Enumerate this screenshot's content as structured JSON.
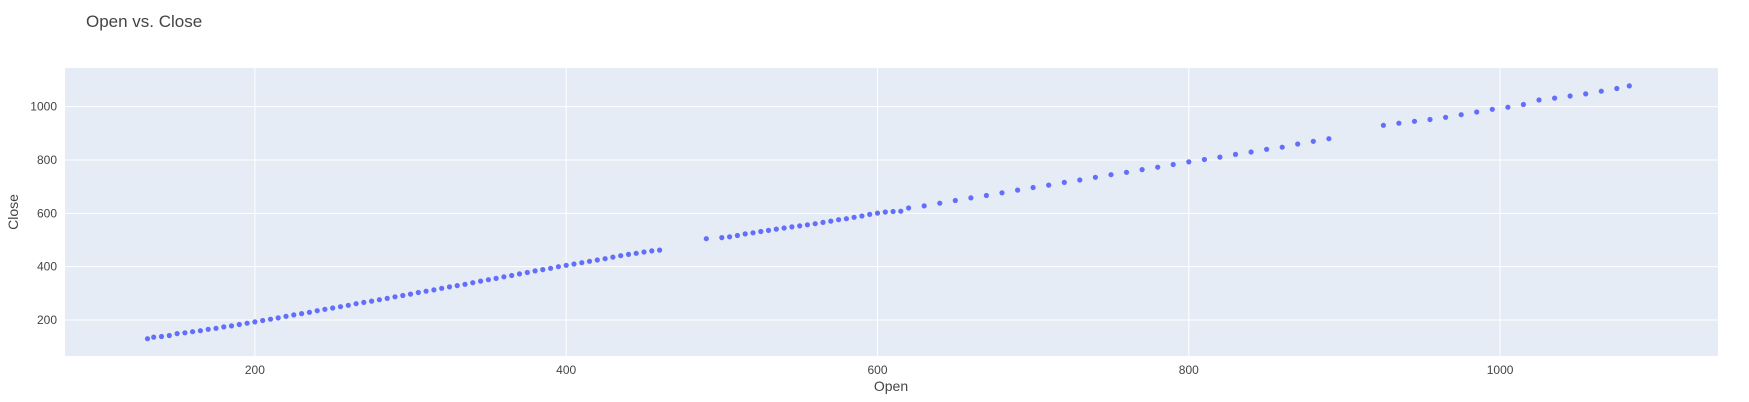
{
  "chart_data": {
    "type": "scatter",
    "title": "Open vs. Close",
    "xlabel": "Open",
    "ylabel": "Close",
    "xlim": [
      78,
      1140
    ],
    "ylim": [
      65,
      1145
    ],
    "x_ticks": [
      200,
      400,
      600,
      800,
      1000
    ],
    "y_ticks": [
      200,
      400,
      600,
      800,
      1000
    ],
    "grid": true,
    "legend": "none",
    "colors": {
      "marker": "#636efa",
      "plot_bg": "#e5ecf6",
      "grid": "#ffffff",
      "text": "#444444"
    },
    "series": [
      {
        "points": [
          [
            131,
            130
          ],
          [
            135,
            136
          ],
          [
            140,
            138
          ],
          [
            145,
            142
          ],
          [
            150,
            149
          ],
          [
            155,
            152
          ],
          [
            160,
            156
          ],
          [
            165,
            160
          ],
          [
            170,
            165
          ],
          [
            175,
            169
          ],
          [
            180,
            174
          ],
          [
            185,
            178
          ],
          [
            190,
            183
          ],
          [
            195,
            188
          ],
          [
            200,
            193
          ],
          [
            205,
            198
          ],
          [
            210,
            203
          ],
          [
            215,
            208
          ],
          [
            220,
            214
          ],
          [
            225,
            219
          ],
          [
            230,
            224
          ],
          [
            235,
            229
          ],
          [
            240,
            235
          ],
          [
            245,
            240
          ],
          [
            250,
            245
          ],
          [
            255,
            250
          ],
          [
            260,
            255
          ],
          [
            265,
            261
          ],
          [
            270,
            266
          ],
          [
            275,
            271
          ],
          [
            280,
            276
          ],
          [
            285,
            281
          ],
          [
            290,
            287
          ],
          [
            295,
            292
          ],
          [
            300,
            297
          ],
          [
            305,
            303
          ],
          [
            310,
            308
          ],
          [
            315,
            313
          ],
          [
            320,
            319
          ],
          [
            325,
            324
          ],
          [
            330,
            329
          ],
          [
            335,
            334
          ],
          [
            340,
            340
          ],
          [
            345,
            346
          ],
          [
            350,
            351
          ],
          [
            355,
            356
          ],
          [
            360,
            362
          ],
          [
            365,
            367
          ],
          [
            370,
            373
          ],
          [
            375,
            378
          ],
          [
            380,
            384
          ],
          [
            385,
            389
          ],
          [
            390,
            394
          ],
          [
            395,
            400
          ],
          [
            400,
            405
          ],
          [
            405,
            410
          ],
          [
            410,
            415
          ],
          [
            415,
            420
          ],
          [
            420,
            425
          ],
          [
            425,
            430
          ],
          [
            430,
            436
          ],
          [
            435,
            441
          ],
          [
            440,
            446
          ],
          [
            445,
            450
          ],
          [
            450,
            455
          ],
          [
            455,
            459
          ],
          [
            460,
            462
          ],
          [
            490,
            505
          ],
          [
            500,
            509
          ],
          [
            505,
            512
          ],
          [
            510,
            517
          ],
          [
            515,
            523
          ],
          [
            520,
            527
          ],
          [
            525,
            532
          ],
          [
            530,
            536
          ],
          [
            535,
            541
          ],
          [
            540,
            545
          ],
          [
            545,
            549
          ],
          [
            550,
            553
          ],
          [
            555,
            557
          ],
          [
            560,
            561
          ],
          [
            565,
            566
          ],
          [
            570,
            571
          ],
          [
            575,
            576
          ],
          [
            580,
            580
          ],
          [
            585,
            585
          ],
          [
            590,
            590
          ],
          [
            595,
            596
          ],
          [
            600,
            601
          ],
          [
            605,
            605
          ],
          [
            610,
            607
          ],
          [
            615,
            608
          ],
          [
            620,
            620
          ],
          [
            630,
            628
          ],
          [
            640,
            638
          ],
          [
            650,
            648
          ],
          [
            660,
            658
          ],
          [
            670,
            667
          ],
          [
            680,
            677
          ],
          [
            690,
            687
          ],
          [
            700,
            697
          ],
          [
            710,
            706
          ],
          [
            720,
            716
          ],
          [
            730,
            725
          ],
          [
            740,
            735
          ],
          [
            750,
            745
          ],
          [
            760,
            754
          ],
          [
            770,
            764
          ],
          [
            780,
            773
          ],
          [
            790,
            783
          ],
          [
            800,
            793
          ],
          [
            810,
            802
          ],
          [
            820,
            811
          ],
          [
            830,
            821
          ],
          [
            840,
            830
          ],
          [
            850,
            840
          ],
          [
            860,
            848
          ],
          [
            870,
            860
          ],
          [
            880,
            870
          ],
          [
            890,
            880
          ],
          [
            925,
            930
          ],
          [
            935,
            938
          ],
          [
            945,
            945
          ],
          [
            955,
            952
          ],
          [
            965,
            960
          ],
          [
            975,
            970
          ],
          [
            985,
            980
          ],
          [
            995,
            990
          ],
          [
            1005,
            998
          ],
          [
            1015,
            1008
          ],
          [
            1025,
            1025
          ],
          [
            1035,
            1032
          ],
          [
            1045,
            1040
          ],
          [
            1055,
            1048
          ],
          [
            1065,
            1058
          ],
          [
            1075,
            1068
          ],
          [
            1083,
            1078
          ]
        ]
      }
    ]
  }
}
